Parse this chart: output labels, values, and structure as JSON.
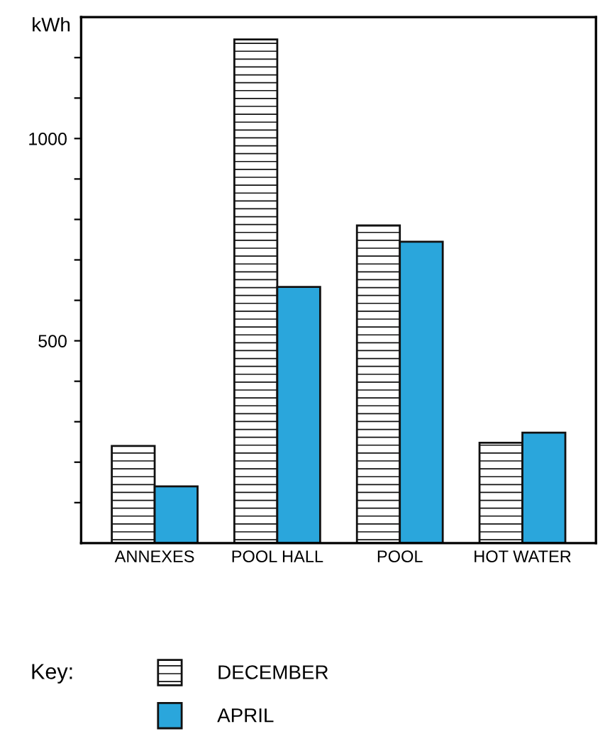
{
  "chart_data": {
    "type": "bar",
    "ylabel": "kWh",
    "legend_title": "Key:",
    "categories": [
      "ANNEXES",
      "POOL HALL",
      "POOL",
      "HOT WATER"
    ],
    "series": [
      {
        "name": "DECEMBER",
        "color": "#111111",
        "values": [
          240,
          1245,
          785,
          248
        ]
      },
      {
        "name": "APRIL",
        "color": "#2aa6dc",
        "values": [
          140,
          633,
          745,
          273
        ]
      }
    ],
    "ylim": [
      0,
      1300
    ],
    "yticks": [
      {
        "value": 100,
        "label": null
      },
      {
        "value": 200,
        "label": null
      },
      {
        "value": 300,
        "label": null
      },
      {
        "value": 400,
        "label": null
      },
      500,
      {
        "value": 600,
        "label": null
      },
      {
        "value": 700,
        "label": null
      },
      {
        "value": 800,
        "label": null
      },
      {
        "value": 900,
        "label": null
      },
      1000,
      {
        "value": 1100,
        "label": null
      },
      {
        "value": 1200,
        "label": null
      }
    ],
    "grid": false,
    "legend": "bottom"
  }
}
